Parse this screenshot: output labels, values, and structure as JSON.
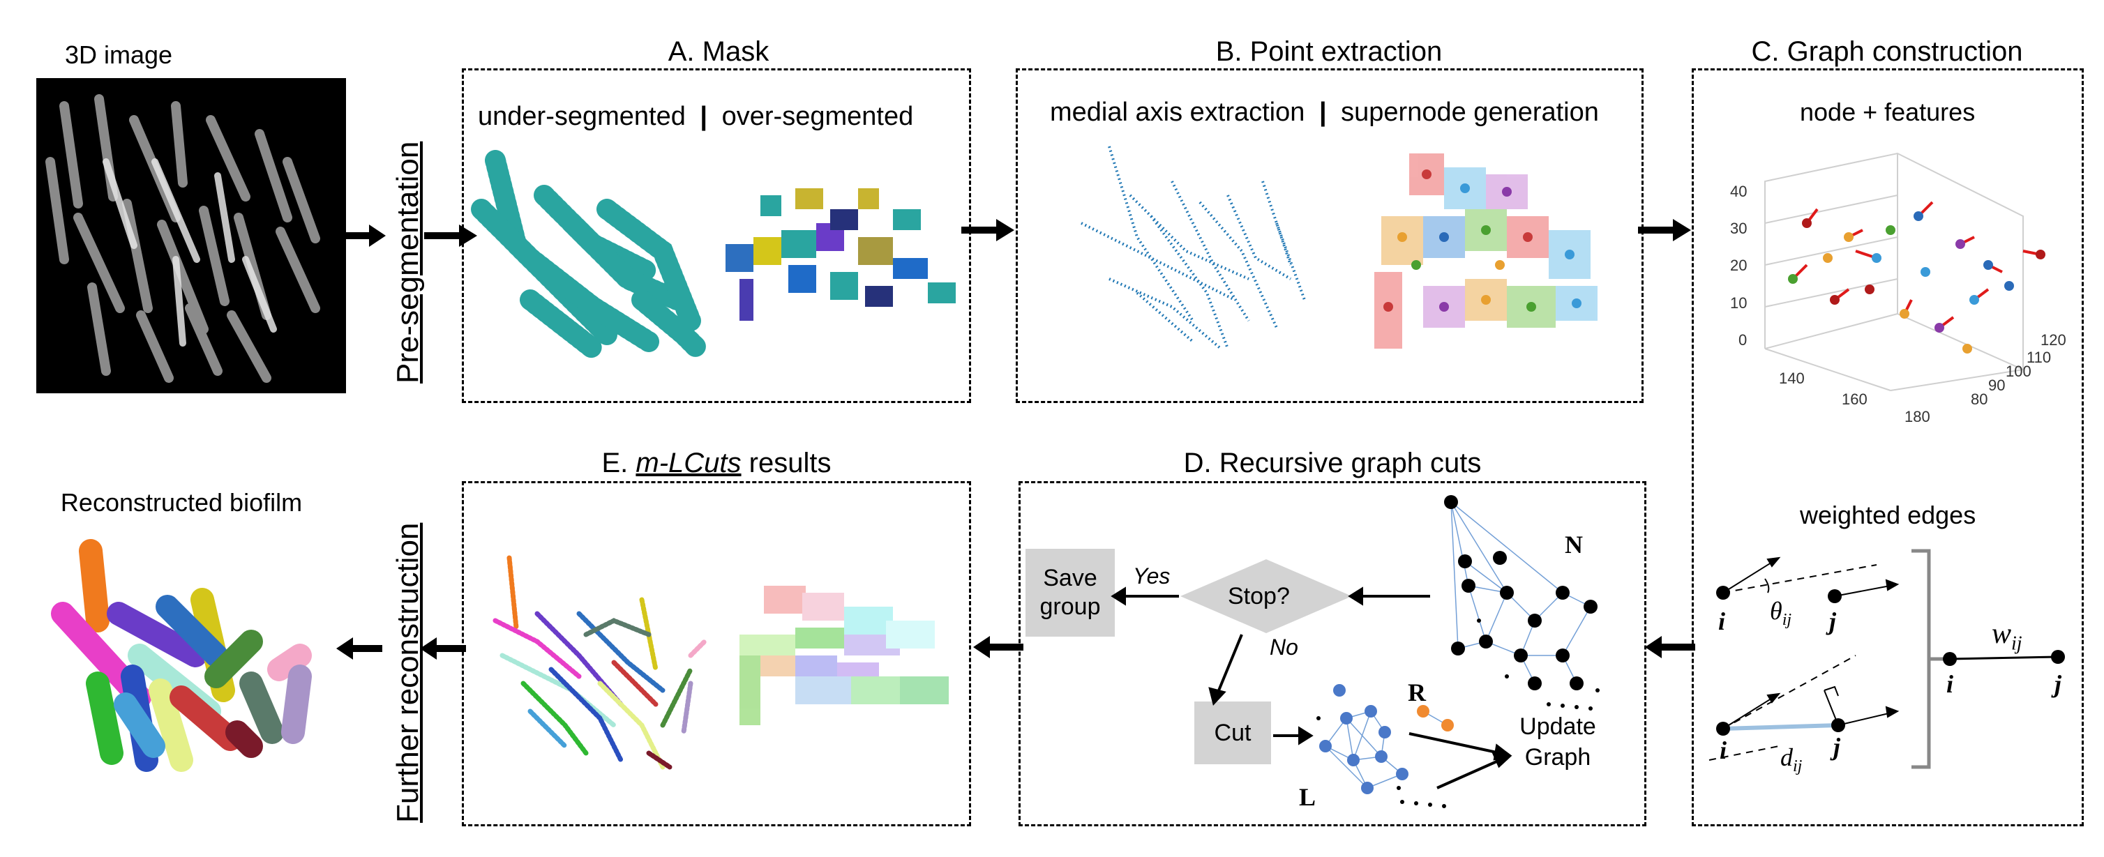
{
  "left": {
    "image_title": "3D image",
    "result_title": "Reconstructed biofilm",
    "pre_segmentation": "Pre-segmentation",
    "further_reconstruction": "Further reconstruction"
  },
  "panelA": {
    "title": "A. Mask",
    "sub_left": "under-segmented",
    "sep": "|",
    "sub_right": "over-segmented"
  },
  "panelB": {
    "title": "B. Point extraction",
    "sub_left": "medial axis extraction",
    "sep": "|",
    "sub_right": "supernode generation"
  },
  "panelC": {
    "title": "C. Graph construction",
    "nodes_label": "node + features",
    "edges_label": "weighted edges",
    "z_ticks": [
      "0",
      "10",
      "20",
      "30",
      "40"
    ],
    "x_ticks": [
      "140",
      "160",
      "180"
    ],
    "y_ticks": [
      "80",
      "90",
      "100",
      "110",
      "120"
    ],
    "var_i": "i",
    "var_j": "j",
    "theta": "θ",
    "theta_sub": "ij",
    "w": "w",
    "w_sub": "ij",
    "d": "d",
    "d_sub": "ij"
  },
  "panelD": {
    "title": "D. Recursive graph cuts",
    "save_group": "Save group",
    "yes": "Yes",
    "stop": "Stop?",
    "no": "No",
    "cut": "Cut",
    "update_graph": "Update Graph",
    "N": "N",
    "R": "R",
    "L": "L"
  },
  "panelE": {
    "title_prefix": "E. ",
    "title_em": "m-LCuts",
    "title_suffix": " results"
  },
  "colors": {
    "teal": "#2aa5a0",
    "blue_line": "#1f77b4",
    "graph_edge": "#5b8fd0",
    "gray_box": "#d3d3d3",
    "orange_node": "#f08a30",
    "blue_node": "#4a78c8"
  }
}
